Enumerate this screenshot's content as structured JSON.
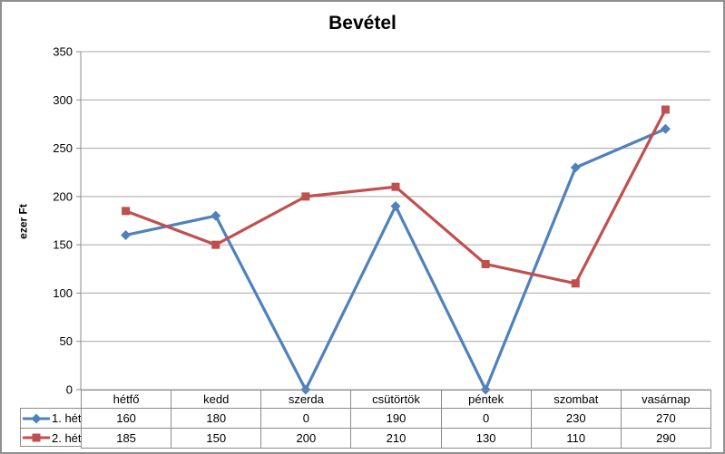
{
  "window": {
    "type": "excel-chart-screenshot"
  },
  "theme": {
    "background": "#ffffff",
    "frame_border": "#8f8f8f",
    "grid_color": "#a6a6a6",
    "axis_color": "#8a8a8a",
    "table_border": "#8c8c8c",
    "text_color": "#000000",
    "series1_color": "#4f81bd",
    "series2_color": "#c0504d"
  },
  "chart_data": {
    "type": "line",
    "title": "Bevétel",
    "ylabel": "ezer Ft",
    "xlabel": "",
    "categories": [
      "hétfő",
      "kedd",
      "szerda",
      "csütörtök",
      "péntek",
      "szombat",
      "vasárnap"
    ],
    "series": [
      {
        "name": "1. hét",
        "color": "#4f81bd",
        "marker": "diamond",
        "values": [
          160,
          180,
          0,
          190,
          0,
          230,
          270
        ]
      },
      {
        "name": "2. hét",
        "color": "#c0504d",
        "marker": "square",
        "values": [
          185,
          150,
          200,
          210,
          130,
          110,
          290
        ]
      }
    ],
    "ylim": [
      0,
      350
    ],
    "ytick_step": 50,
    "yticks": [
      0,
      50,
      100,
      150,
      200,
      250,
      300,
      350
    ],
    "grid": "horizontal",
    "legend_position": "table-left"
  }
}
